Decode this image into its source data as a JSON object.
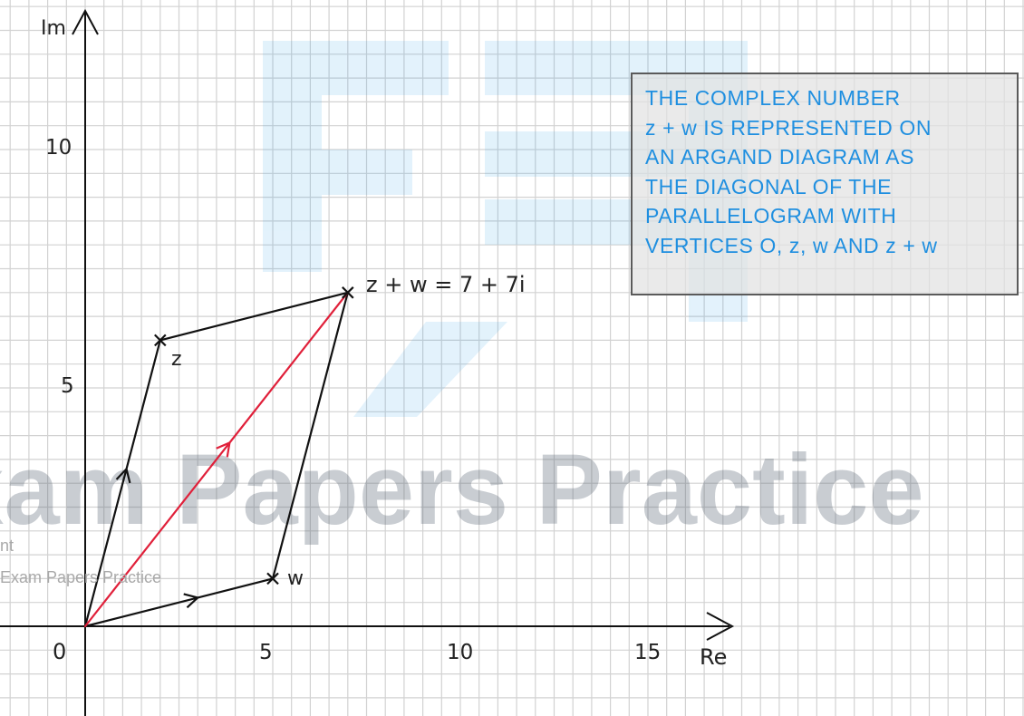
{
  "axes": {
    "x_label": "Re",
    "y_label": "Im",
    "origin_label": "0",
    "x_ticks": [
      "5",
      "10",
      "15"
    ],
    "y_ticks": [
      "5",
      "10"
    ]
  },
  "points": {
    "z": {
      "label": "z",
      "re": 2,
      "im": 6
    },
    "w": {
      "label": "w",
      "re": 5,
      "im": 1
    },
    "sum": {
      "label": "z + w = 7 + 7i",
      "re": 7,
      "im": 7
    }
  },
  "info_box": {
    "lines": [
      "THE COMPLEX NUMBER",
      "z + w IS REPRESENTED ON",
      "AN ARGAND DIAGRAM AS",
      "THE DIAGONAL OF THE",
      "PARALLELOGRAM WITH",
      "VERTICES O, z, w  AND  z + w"
    ]
  },
  "watermark": {
    "big_text": "Exam Papers Practice",
    "line1": "nt",
    "line2": "Exam Papers Practice"
  },
  "colors": {
    "grid": "#d2d2d2",
    "axis": "#111111",
    "sum_vector": "#e0203a",
    "info_text": "#1f8fe0",
    "logo": "#37a6e8",
    "watermark_text": "#566272"
  }
}
